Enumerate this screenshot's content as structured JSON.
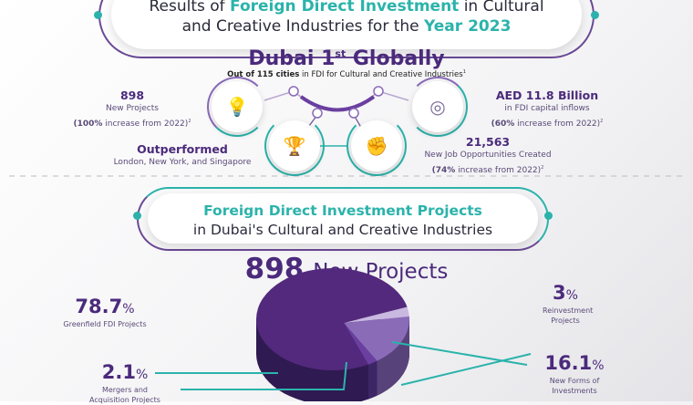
{
  "header": {
    "line1_pre": "Results of ",
    "line1_highlight": "Foreign Direct Investment",
    "line1_post": " in Cultural",
    "line2_pre": "and Creative Industries for the ",
    "line2_highlight": "Year 2023"
  },
  "ranking": {
    "title": "Dubai 1",
    "title_sup": "st",
    "title_post": " Globally",
    "subtitle_bold": "Out of 115 cities",
    "subtitle_rest": " in FDI for Cultural and Creative Industries",
    "subtitle_note": "1"
  },
  "stats": [
    {
      "value": "898",
      "line1": "New Projects",
      "line2_bold": "(100%",
      "line2": " increase from 2022)",
      "note": "2",
      "icon": "lightbulb-icon"
    },
    {
      "value": "AED 11.8 Billion",
      "line1": "in FDI capital inflows",
      "line2_bold": "(60%",
      "line2": " increase from 2022)",
      "note": "2",
      "icon": "target-icon"
    },
    {
      "value": "Outperformed",
      "line1": "London, New York, and Singapore",
      "icon": "trophy-icon"
    },
    {
      "value": "21,563",
      "line1": "New Job Opportunities Created",
      "line2_bold": "(74%",
      "line2": " increase from 2022)",
      "note": "2",
      "icon": "raised-fist-icon"
    }
  ],
  "section2": {
    "title": "Foreign Direct Investment Projects",
    "subtitle": "in Dubai's Cultural and Creative Industries",
    "total_value": "898",
    "total_label": "New Projects"
  },
  "colors": {
    "purple": "#4b2a7b",
    "teal": "#2bb3ab"
  },
  "chart_data": {
    "type": "pie",
    "title": "898 New Projects",
    "slices": [
      {
        "label": "Greenfield FDI Projects",
        "value": 78.7,
        "display": "78.7",
        "color": "#52297c"
      },
      {
        "label": "Reinvestment Projects",
        "value": 3,
        "display": "3",
        "color": "#c9b8e0"
      },
      {
        "label": "New Forms of Investments",
        "value": 16.1,
        "display": "16.1",
        "color": "#8a6bb8"
      },
      {
        "label": "Mergers and Acquisition Projects",
        "value": 2.1,
        "display": "2.1",
        "color": "#6a3fa0"
      }
    ],
    "unit": "%"
  }
}
